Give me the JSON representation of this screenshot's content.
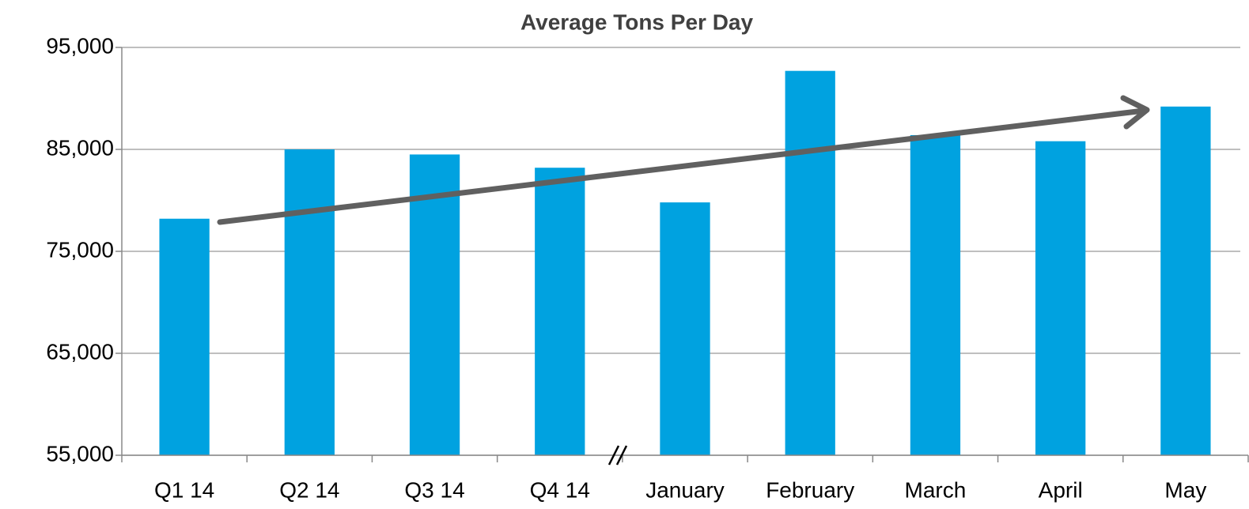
{
  "chart_data": {
    "type": "bar",
    "title": "Average Tons Per Day",
    "categories": [
      "Q1 14",
      "Q2 14",
      "Q3 14",
      "Q4 14",
      "January",
      "February",
      "March",
      "April",
      "May"
    ],
    "values": [
      78200,
      85000,
      84500,
      83200,
      79800,
      92700,
      86400,
      85800,
      89200
    ],
    "color": "#00a2e0",
    "ylim": [
      55000,
      95000
    ],
    "yticks": [
      {
        "value": 55000,
        "label": "55,000"
      },
      {
        "value": 65000,
        "label": "65,000"
      },
      {
        "value": 75000,
        "label": "75,000"
      },
      {
        "value": 85000,
        "label": "85,000"
      },
      {
        "value": 95000,
        "label": "95,000"
      }
    ],
    "grid": true
  }
}
